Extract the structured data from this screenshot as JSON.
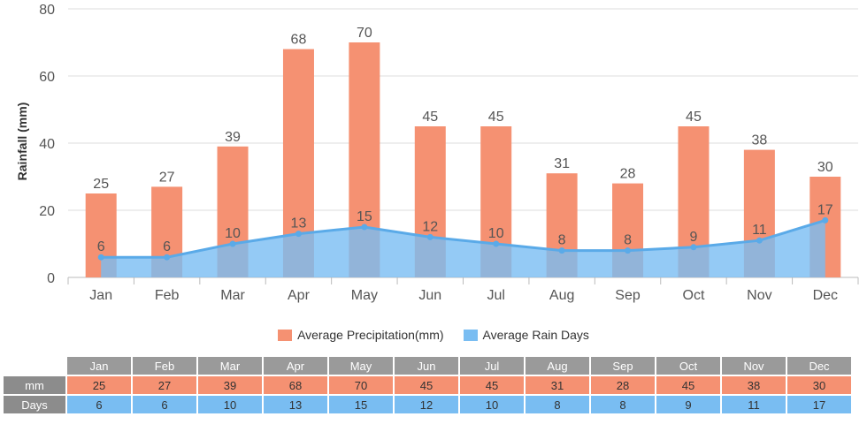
{
  "chart_data": {
    "type": "bar",
    "categories": [
      "Jan",
      "Feb",
      "Mar",
      "Apr",
      "May",
      "Jun",
      "Jul",
      "Aug",
      "Sep",
      "Oct",
      "Nov",
      "Dec"
    ],
    "series": [
      {
        "name": "Average Precipitation(mm)",
        "type": "bar",
        "color": "#f59172",
        "values": [
          25,
          27,
          39,
          68,
          70,
          45,
          45,
          31,
          28,
          45,
          38,
          30
        ]
      },
      {
        "name": "Average Rain Days",
        "type": "area",
        "color": "#79bdf2",
        "values": [
          6,
          6,
          10,
          13,
          15,
          12,
          10,
          8,
          8,
          9,
          11,
          17
        ]
      }
    ],
    "ylabel": "Rainfall (mm)",
    "xlabel": "",
    "ylim": [
      0,
      80
    ],
    "yticks": [
      0,
      20,
      40,
      60,
      80
    ],
    "grid": true,
    "legend_position": "bottom"
  },
  "table": {
    "row_labels": {
      "mm": "mm",
      "days": "Days"
    }
  }
}
